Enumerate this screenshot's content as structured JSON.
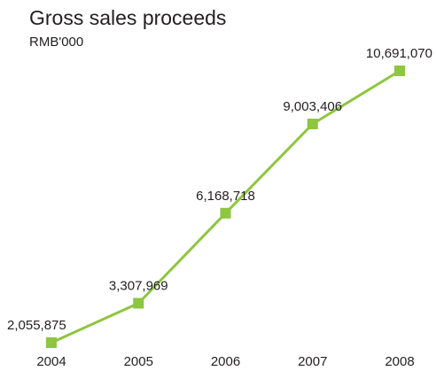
{
  "chart_data": {
    "type": "line",
    "title": "Gross sales proceeds",
    "subtitle": "RMB'000",
    "categories": [
      "2004",
      "2005",
      "2006",
      "2007",
      "2008"
    ],
    "values": [
      2055875,
      3307969,
      6168718,
      9003406,
      10691070
    ],
    "data_labels": [
      "2,055,875",
      "3,307,969",
      "6,168,718",
      "9,003,406",
      "10,691,070"
    ],
    "xlabel": "",
    "ylabel": "",
    "grid": false,
    "legend": "none",
    "line_color": "#8dc63f",
    "marker": "square"
  }
}
